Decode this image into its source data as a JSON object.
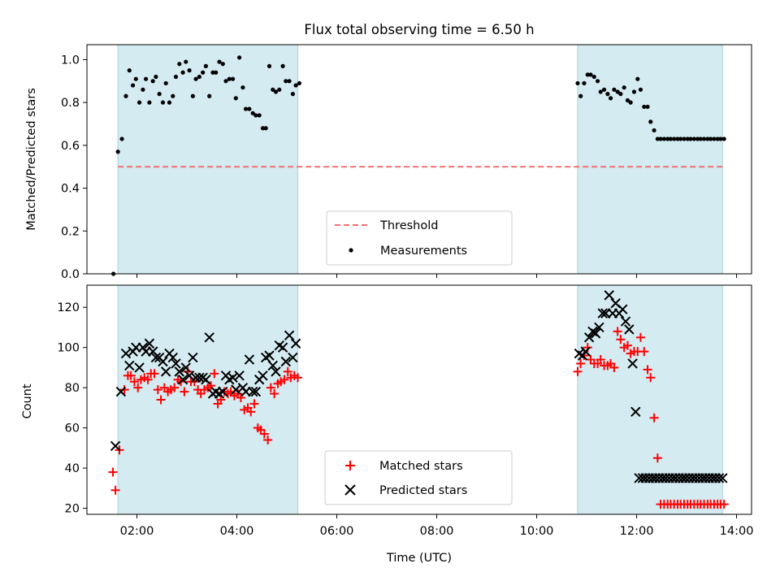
{
  "chart_data": [
    {
      "type": "scatter",
      "title": "Flux total observing time = 6.50 h",
      "ylabel": "Matched/Predicted stars",
      "xlabel": "",
      "xlim": [
        1.0,
        14.3
      ],
      "ylim": [
        0.0,
        1.07
      ],
      "x_ticks": [
        2,
        4,
        6,
        8,
        10,
        12,
        14
      ],
      "y_ticks": [
        0.0,
        0.2,
        0.4,
        0.6,
        0.8,
        1.0
      ],
      "y_tick_labels": [
        "0.0",
        "0.2",
        "0.4",
        "0.6",
        "0.8",
        "1.0"
      ],
      "shaded_ranges": [
        [
          1.62,
          5.22
        ],
        [
          10.82,
          13.72
        ]
      ],
      "threshold": {
        "name": "Threshold",
        "value": 0.5,
        "x": [
          1.62,
          13.72
        ],
        "color": "#f07070"
      },
      "series": [
        {
          "name": "Measurements",
          "color": "#000000",
          "x": [
            1.53,
            1.62,
            1.7,
            1.78,
            1.85,
            1.92,
            1.98,
            2.05,
            2.12,
            2.18,
            2.25,
            2.32,
            2.38,
            2.45,
            2.52,
            2.58,
            2.65,
            2.72,
            2.78,
            2.85,
            2.92,
            2.98,
            3.05,
            3.12,
            3.18,
            3.25,
            3.32,
            3.38,
            3.45,
            3.52,
            3.58,
            3.65,
            3.72,
            3.78,
            3.85,
            3.92,
            3.98,
            4.05,
            4.12,
            4.18,
            4.25,
            4.32,
            4.38,
            4.45,
            4.52,
            4.58,
            4.65,
            4.72,
            4.78,
            4.85,
            4.92,
            4.98,
            5.05,
            5.12,
            5.18,
            5.25,
            10.82,
            10.88,
            10.95,
            11.02,
            11.08,
            11.15,
            11.22,
            11.28,
            11.35,
            11.42,
            11.48,
            11.55,
            11.62,
            11.68,
            11.75,
            11.82,
            11.88,
            11.95,
            12.02,
            12.08,
            12.15,
            12.22,
            12.28,
            12.35,
            12.42,
            12.48,
            12.55,
            12.62,
            12.68,
            12.75,
            12.82,
            12.88,
            12.95,
            13.02,
            13.08,
            13.15,
            13.22,
            13.28,
            13.35,
            13.42,
            13.48,
            13.55,
            13.62,
            13.68,
            13.75
          ],
          "y": [
            0.0,
            0.57,
            0.63,
            0.83,
            0.95,
            0.88,
            0.91,
            0.8,
            0.86,
            0.91,
            0.8,
            0.9,
            0.92,
            0.84,
            0.8,
            0.89,
            0.8,
            0.83,
            0.92,
            0.98,
            0.94,
            0.99,
            0.95,
            0.83,
            0.91,
            0.92,
            0.94,
            0.97,
            0.83,
            0.94,
            0.94,
            0.99,
            0.98,
            0.9,
            0.91,
            0.91,
            0.82,
            1.01,
            0.87,
            0.77,
            0.77,
            0.75,
            0.74,
            0.74,
            0.68,
            0.68,
            0.97,
            0.86,
            0.85,
            0.86,
            0.97,
            0.9,
            0.9,
            0.84,
            0.88,
            0.89,
            0.89,
            0.83,
            0.89,
            0.93,
            0.93,
            0.92,
            0.9,
            0.85,
            0.86,
            0.84,
            0.82,
            0.86,
            0.85,
            0.84,
            0.87,
            0.81,
            0.8,
            0.85,
            0.91,
            0.86,
            0.78,
            0.78,
            0.71,
            0.67,
            0.63,
            0.63,
            0.63,
            0.63,
            0.63,
            0.63,
            0.63,
            0.63,
            0.63,
            0.63,
            0.63,
            0.63,
            0.63,
            0.63,
            0.63,
            0.63,
            0.63,
            0.63,
            0.63,
            0.63,
            0.63
          ]
        }
      ],
      "legend": {
        "placement": "bottom-center",
        "entries": [
          "Threshold",
          "Measurements"
        ]
      }
    },
    {
      "type": "scatter",
      "title": "",
      "xlabel": "Time (UTC)",
      "ylabel": "Count",
      "xlim": [
        1.0,
        14.3
      ],
      "ylim": [
        17,
        131
      ],
      "x_ticks": [
        2,
        4,
        6,
        8,
        10,
        12,
        14
      ],
      "x_tick_labels": [
        "02:00",
        "04:00",
        "06:00",
        "08:00",
        "10:00",
        "12:00",
        "14:00"
      ],
      "y_ticks": [
        20,
        40,
        60,
        80,
        100,
        120
      ],
      "y_tick_labels": [
        "20",
        "40",
        "60",
        "80",
        "100",
        "120"
      ],
      "shaded_ranges": [
        [
          1.62,
          5.22
        ],
        [
          10.82,
          13.72
        ]
      ],
      "series": [
        {
          "name": "Matched stars",
          "marker": "plus",
          "color": "#ff0000",
          "x": [
            1.52,
            1.57,
            1.65,
            1.75,
            1.82,
            1.88,
            1.95,
            2.02,
            2.08,
            2.15,
            2.22,
            2.28,
            2.35,
            2.42,
            2.48,
            2.55,
            2.62,
            2.68,
            2.75,
            2.82,
            2.88,
            2.95,
            3.02,
            3.08,
            3.15,
            3.22,
            3.28,
            3.35,
            3.42,
            3.48,
            3.55,
            3.62,
            3.68,
            3.75,
            3.82,
            3.88,
            3.95,
            4.02,
            4.08,
            4.15,
            4.22,
            4.28,
            4.35,
            4.42,
            4.48,
            4.55,
            4.62,
            4.68,
            4.75,
            4.82,
            4.88,
            4.95,
            5.02,
            5.08,
            5.15,
            5.22,
            10.82,
            10.88,
            10.95,
            11.02,
            11.08,
            11.15,
            11.22,
            11.28,
            11.35,
            11.42,
            11.48,
            11.55,
            11.62,
            11.68,
            11.75,
            11.82,
            11.88,
            11.95,
            12.02,
            12.08,
            12.15,
            12.22,
            12.28,
            12.35,
            12.42,
            12.48,
            12.55,
            12.62,
            12.68,
            12.75,
            12.82,
            12.88,
            12.95,
            13.02,
            13.08,
            13.15,
            13.22,
            13.28,
            13.35,
            13.42,
            13.48,
            13.55,
            13.62,
            13.68,
            13.75
          ],
          "y": [
            38,
            29,
            49,
            79,
            86,
            86,
            83,
            80,
            84,
            85,
            84,
            87,
            87,
            79,
            74,
            80,
            78,
            79,
            80,
            84,
            83,
            78,
            88,
            83,
            83,
            79,
            77,
            79,
            80,
            81,
            87,
            72,
            74,
            78,
            77,
            78,
            76,
            77,
            75,
            69,
            70,
            68,
            72,
            60,
            59,
            57,
            54,
            80,
            77,
            82,
            83,
            84,
            88,
            85,
            86,
            85,
            88,
            92,
            96,
            100,
            94,
            92,
            92,
            94,
            91,
            91,
            92,
            90,
            108,
            104,
            100,
            101,
            97,
            98,
            98,
            105,
            98,
            89,
            85,
            65,
            45,
            22,
            22,
            22,
            22,
            22,
            22,
            22,
            22,
            22,
            22,
            22,
            22,
            22,
            22,
            22,
            22,
            22,
            22,
            22,
            22
          ]
        },
        {
          "name": "Predicted stars",
          "marker": "x",
          "color": "#000000",
          "x": [
            1.57,
            1.68,
            1.78,
            1.85,
            1.92,
            1.98,
            2.05,
            2.12,
            2.18,
            2.25,
            2.32,
            2.38,
            2.45,
            2.52,
            2.58,
            2.65,
            2.72,
            2.78,
            2.85,
            2.92,
            2.98,
            3.05,
            3.12,
            3.18,
            3.25,
            3.32,
            3.38,
            3.45,
            3.52,
            3.58,
            3.65,
            3.72,
            3.78,
            3.85,
            3.92,
            3.98,
            4.05,
            4.12,
            4.18,
            4.25,
            4.32,
            4.38,
            4.45,
            4.52,
            4.58,
            4.65,
            4.72,
            4.78,
            4.85,
            4.92,
            4.98,
            5.05,
            5.12,
            5.18,
            10.85,
            10.92,
            10.98,
            11.05,
            11.12,
            11.18,
            11.25,
            11.32,
            11.38,
            11.45,
            11.52,
            11.58,
            11.65,
            11.72,
            11.78,
            11.85,
            11.92,
            11.98,
            12.05,
            12.12,
            12.18,
            12.25,
            12.32,
            12.38,
            12.45,
            12.52,
            12.58,
            12.65,
            12.72,
            12.78,
            12.85,
            12.92,
            12.98,
            13.05,
            13.12,
            13.18,
            13.25,
            13.32,
            13.38,
            13.45,
            13.52,
            13.58,
            13.65,
            13.72
          ],
          "y": [
            51,
            78,
            97,
            91,
            98,
            100,
            90,
            100,
            98,
            102,
            98,
            95,
            95,
            93,
            88,
            97,
            95,
            92,
            88,
            84,
            90,
            86,
            95,
            85,
            85,
            85,
            84,
            105,
            77,
            78,
            77,
            78,
            86,
            84,
            85,
            79,
            86,
            80,
            78,
            94,
            78,
            78,
            84,
            86,
            95,
            96,
            91,
            88,
            101,
            100,
            93,
            106,
            95,
            102,
            97,
            96,
            98,
            105,
            108,
            107,
            110,
            117,
            117,
            126,
            117,
            122,
            117,
            119,
            113,
            109,
            92,
            68,
            35,
            35,
            35,
            35,
            35,
            35,
            35,
            35,
            35,
            35,
            35,
            35,
            35,
            35,
            35,
            35,
            35,
            35,
            35,
            35,
            35,
            35,
            35,
            35,
            35,
            35
          ]
        }
      ],
      "legend": {
        "placement": "bottom-center",
        "entries": [
          "Matched stars",
          "Predicted stars"
        ]
      }
    }
  ]
}
